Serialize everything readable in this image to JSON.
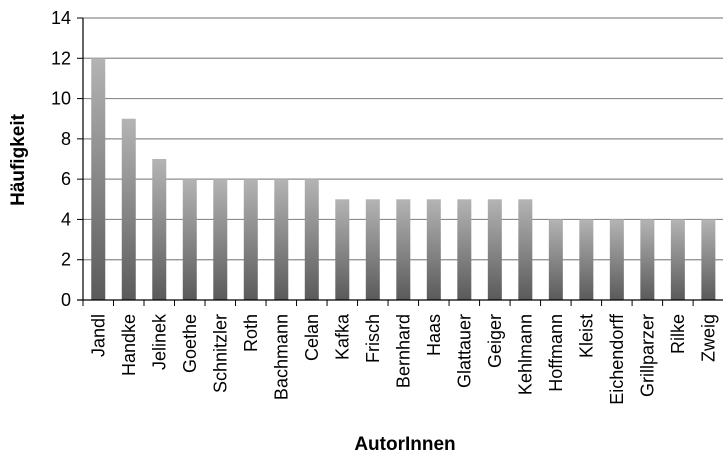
{
  "chart_data": {
    "type": "bar",
    "title": "",
    "xlabel": "AutorInnen",
    "ylabel": "Häufigkeit",
    "ylim": [
      0,
      14
    ],
    "yticks": [
      0,
      2,
      4,
      6,
      8,
      10,
      12,
      14
    ],
    "grid": true,
    "legend": "none",
    "categories": [
      "Jandl",
      "Handke",
      "Jelinek",
      "Goethe",
      "Schnitzler",
      "Roth",
      "Bachmann",
      "Celan",
      "Kafka",
      "Frisch",
      "Bernhard",
      "Haas",
      "Glattauer",
      "Geiger",
      "Kehlmann",
      "Hoffmann",
      "Kleist",
      "Eichendorff",
      "Grillparzer",
      "Rilke",
      "Zweig"
    ],
    "values": [
      12,
      9,
      7,
      6,
      6,
      6,
      6,
      6,
      5,
      5,
      5,
      5,
      5,
      5,
      5,
      4,
      4,
      4,
      4,
      4,
      4
    ],
    "colors": {
      "bar_light": "#b4b4b4",
      "bar_dark": "#5a5a5a",
      "grid": "#8c8c8c",
      "axis": "#000000"
    }
  }
}
